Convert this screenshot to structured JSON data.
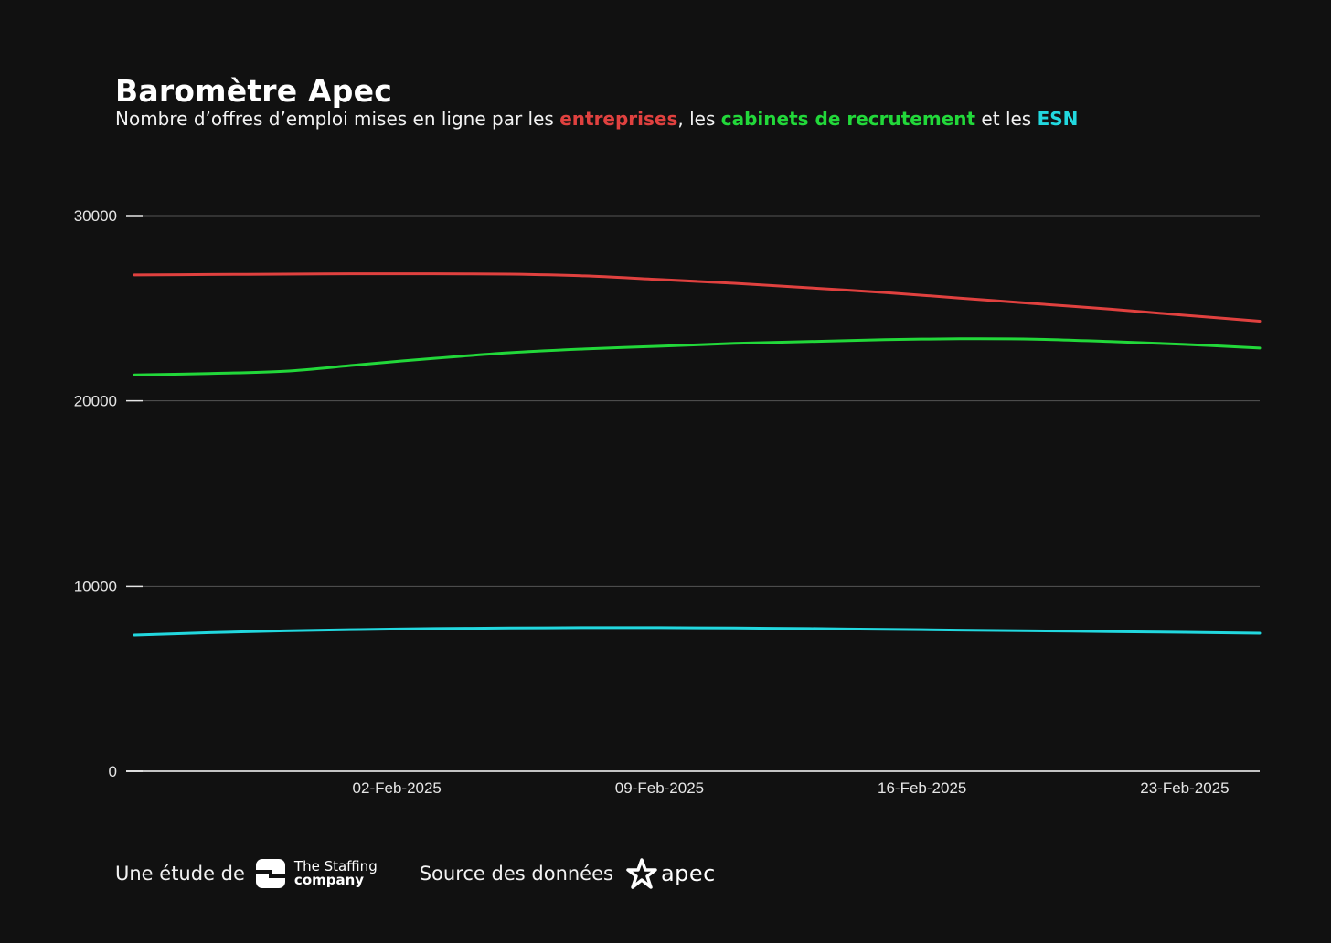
{
  "header": {
    "title": "Baromètre Apec",
    "subtitle_prefix": "Nombre d’offres d’emploi mises en ligne par les ",
    "subtitle_s1": "entreprises",
    "subtitle_sep1": ", les ",
    "subtitle_s2": "cabinets de recrutement",
    "subtitle_sep2": " et les ",
    "subtitle_s3": "ESN"
  },
  "colors": {
    "background": "#111111",
    "entreprises": "#e0413f",
    "cabinets": "#22d83a",
    "esn": "#22d8df",
    "grid": "#555555",
    "axis_text": "#e6e6e6"
  },
  "chart_data": {
    "type": "line",
    "title": "Baromètre Apec",
    "xlabel": "",
    "ylabel": "",
    "ylim": [
      0,
      30000
    ],
    "yticks": [
      0,
      10000,
      20000,
      30000
    ],
    "grid": true,
    "x": [
      "2025-01-26",
      "2025-01-28",
      "2025-01-30",
      "2025-02-01",
      "2025-02-03",
      "2025-02-05",
      "2025-02-07",
      "2025-02-09",
      "2025-02-11",
      "2025-02-13",
      "2025-02-15",
      "2025-02-17",
      "2025-02-19",
      "2025-02-21",
      "2025-02-23",
      "2025-02-25"
    ],
    "xticks": [
      {
        "date": "2025-02-02",
        "label": "02-Feb-2025"
      },
      {
        "date": "2025-02-09",
        "label": "09-Feb-2025"
      },
      {
        "date": "2025-02-16",
        "label": "16-Feb-2025"
      },
      {
        "date": "2025-02-23",
        "label": "23-Feb-2025"
      }
    ],
    "series": [
      {
        "name": "entreprises",
        "color": "#e0413f",
        "values": [
          26800,
          26820,
          26840,
          26860,
          26860,
          26840,
          26750,
          26550,
          26350,
          26100,
          25850,
          25550,
          25250,
          24950,
          24620,
          24300
        ]
      },
      {
        "name": "cabinets de recrutement",
        "color": "#22d83a",
        "values": [
          21400,
          21480,
          21600,
          21950,
          22300,
          22600,
          22800,
          22950,
          23100,
          23200,
          23300,
          23350,
          23330,
          23200,
          23050,
          22850
        ]
      },
      {
        "name": "ESN",
        "color": "#22d8df",
        "values": [
          7350,
          7480,
          7580,
          7650,
          7700,
          7730,
          7750,
          7750,
          7730,
          7700,
          7660,
          7620,
          7580,
          7540,
          7500,
          7450
        ]
      }
    ]
  },
  "footer": {
    "study_label": "Une étude de",
    "staffing_line1": "The Staffing",
    "staffing_line2": "company",
    "source_label": "Source des données",
    "apec_word": "apec"
  }
}
